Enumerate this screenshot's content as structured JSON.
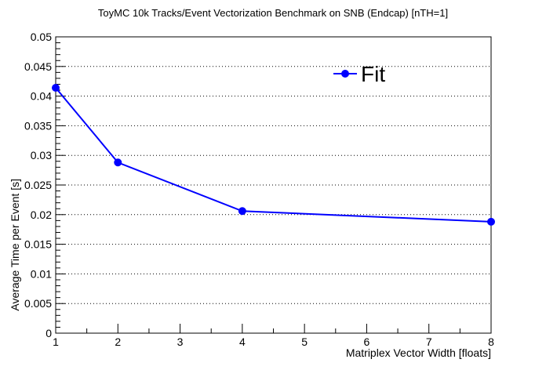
{
  "chart_data": {
    "type": "line",
    "title": "ToyMC 10k Tracks/Event Vectorization Benchmark on SNB (Endcap) [nTH=1]",
    "xlabel": "Matriplex Vector Width [floats]",
    "ylabel": "Average Time per Event [s]",
    "xlim": [
      1,
      8
    ],
    "ylim": [
      0,
      0.05
    ],
    "x_ticks": [
      "1",
      "2",
      "3",
      "4",
      "5",
      "6",
      "7",
      "8"
    ],
    "y_ticks": [
      "0",
      "0.005",
      "0.01",
      "0.015",
      "0.02",
      "0.025",
      "0.03",
      "0.035",
      "0.04",
      "0.045",
      "0.05"
    ],
    "grid": "horizontal dotted",
    "legend_position": "top-right",
    "series": [
      {
        "name": "Fit",
        "color": "#0000ff",
        "x": [
          1,
          2,
          4,
          8
        ],
        "y": [
          0.0414,
          0.0288,
          0.0206,
          0.0188
        ]
      }
    ]
  }
}
